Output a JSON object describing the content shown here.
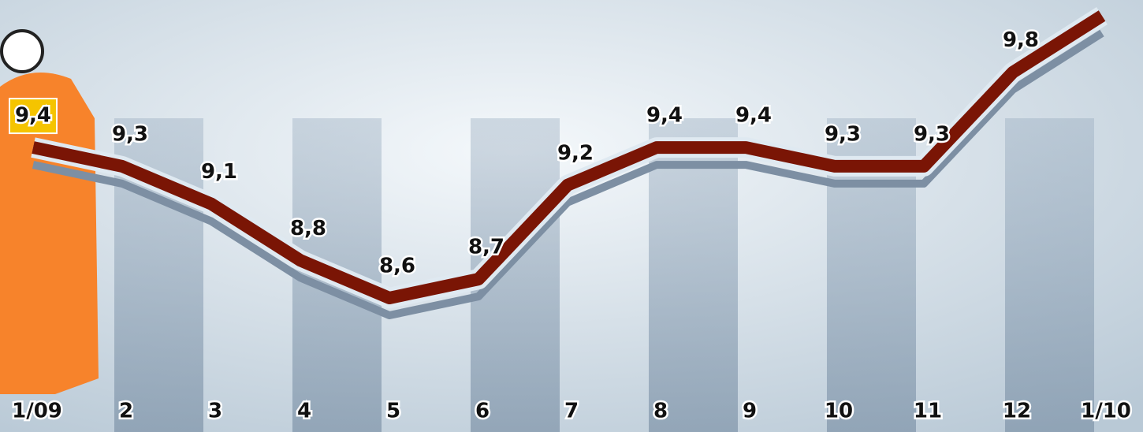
{
  "chart_data": {
    "type": "line",
    "categories": [
      "1/09",
      "2",
      "3",
      "4",
      "5",
      "6",
      "7",
      "8",
      "9",
      "10",
      "11",
      "12",
      "1/10"
    ],
    "values": [
      9.4,
      9.3,
      9.1,
      8.8,
      8.6,
      8.7,
      9.2,
      9.4,
      9.4,
      9.3,
      9.3,
      9.8,
      10.1
    ],
    "value_labels": [
      "9,4",
      "9,3",
      "9,1",
      "8,8",
      "8,6",
      "8,7",
      "9,2",
      "9,4",
      "9,4",
      "9,3",
      "9,3",
      "9,8",
      null
    ],
    "color": "#7a1505"
  }
}
